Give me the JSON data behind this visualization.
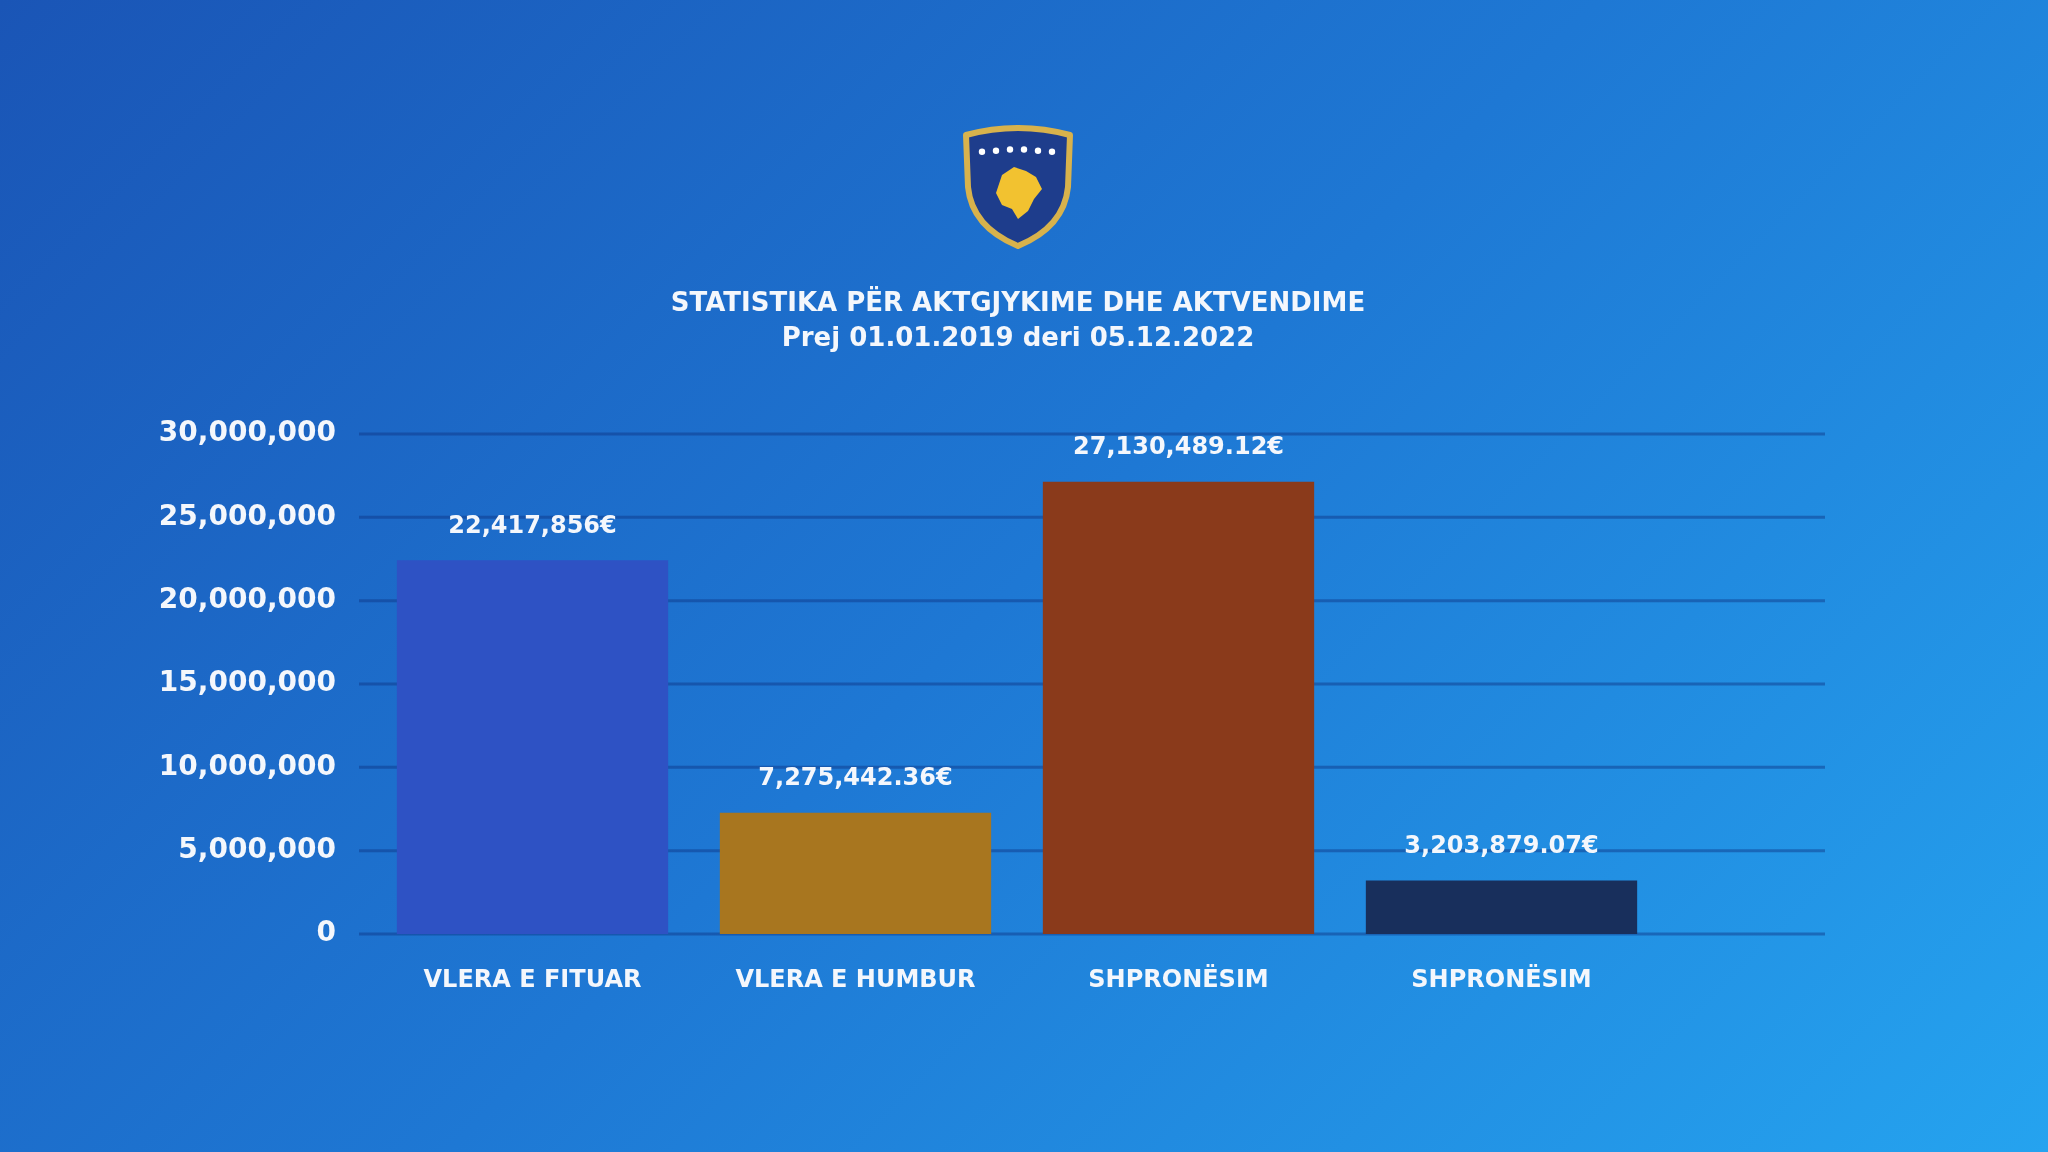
{
  "chart_data": {
    "type": "bar",
    "title": "STATISTIKA PËR AKTGJYKIME DHE AKTVENDIME",
    "subtitle": "Prej 01.01.2019 deri 05.12.2022",
    "categories": [
      "VLERA E FITUAR",
      "VLERA E HUMBUR",
      "SHPRONËSIM",
      "SHPRONËSIM"
    ],
    "values": [
      22417856,
      7275442.36,
      27130489.12,
      3203879.07
    ],
    "colors": [
      "#2e52c4",
      "#a8761f",
      "#8a3a1b",
      "#182f5c"
    ],
    "value_labels": [
      "22,417,856€",
      "7,275,442.36€",
      "27,130,489.12€",
      "3,203,879.07€"
    ],
    "ylim": [
      0,
      30000000
    ],
    "yticks": [
      0,
      {
        "value": 5000000,
        "label": "5,000,000"
      },
      {
        "value": 10000000,
        "label": "10,000,000"
      },
      {
        "value": 15000000,
        "label": "15,000,000"
      },
      {
        "value": 20000000,
        "label": "20,000,000"
      },
      {
        "value": 25000000,
        "label": "25,000,000"
      },
      {
        "value": 30000000,
        "label": "30,000,000"
      }
    ],
    "grid": "y"
  }
}
